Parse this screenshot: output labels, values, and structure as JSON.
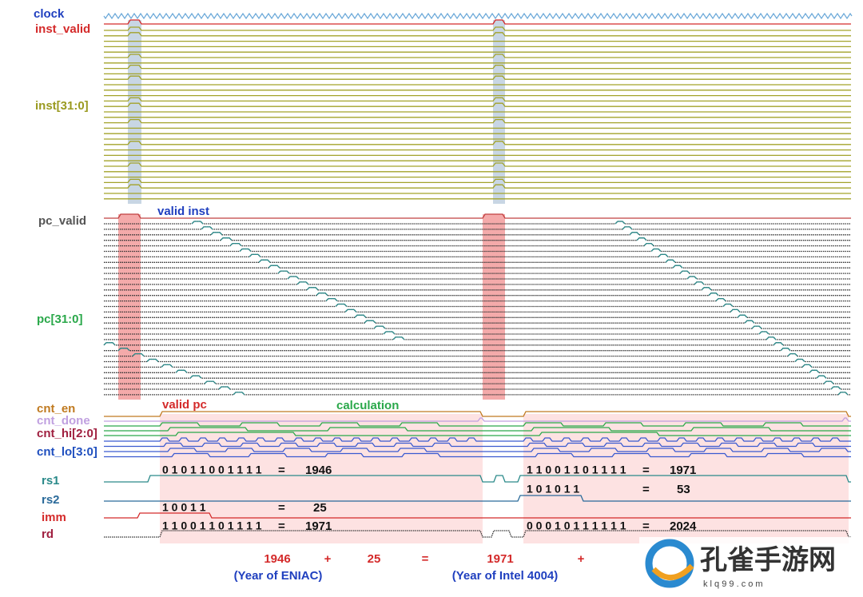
{
  "signals": [
    "clock",
    "inst_valid",
    "inst[31:0]",
    "pc_valid",
    "pc[31:0]",
    "cnt_en",
    "cnt_done",
    "cnt_hi[2:0]",
    "cnt_lo[3:0]",
    "rs1",
    "rs2",
    "imm",
    "rd"
  ],
  "annotations": [
    "valid inst",
    "valid pc",
    "calculation"
  ],
  "values": [
    {
      "bits": "0 1 0 1 1 0 0 1 1 1 1",
      "eq": "=",
      "result": "1946"
    },
    {
      "bits": "1 0 0 1 1",
      "eq": "=",
      "result": "25"
    },
    {
      "bits": "1 1 0 0 1 1 0 1 1 1 1",
      "eq": "=",
      "result": "1971"
    },
    {
      "bits": "1 1 0 0 1 1 0 1 1 1 1",
      "eq": "=",
      "result": "1971"
    },
    {
      "bits": "1 0 1 0 1 1",
      "eq": "=",
      "result": "53"
    },
    {
      "bits": "0 0 0 1 0 1 1 1 1 1 1",
      "eq": "=",
      "result": "2024"
    }
  ],
  "equation": [
    "1946",
    "+",
    "25",
    "=",
    "1971",
    "+"
  ],
  "notes": [
    "(Year of ENIAC)",
    "(Year of Intel 4004)"
  ],
  "watermark": {
    "title": "孔雀手游网",
    "url": "k l q 9 9 . c o m"
  }
}
